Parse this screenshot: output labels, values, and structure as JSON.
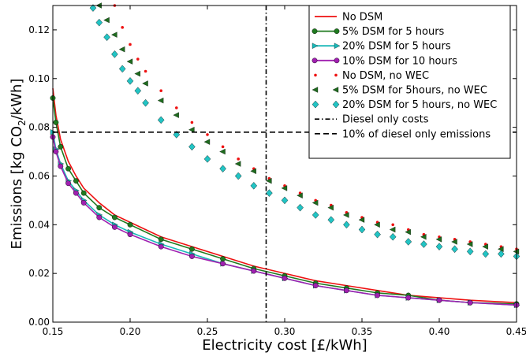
{
  "chart_data": {
    "type": "line",
    "xlabel": "Electricity cost [£/kWh]",
    "ylabel_main": "Emissions [kg CO",
    "ylabel_sub": "2",
    "ylabel_tail": "/kWh]",
    "xlim": [
      0.15,
      0.45
    ],
    "ylim": [
      0.0,
      0.13
    ],
    "xticks": [
      "0.15",
      "0.20",
      "0.25",
      "0.30",
      "0.35",
      "0.40",
      "0.45"
    ],
    "xtick_values": [
      0.15,
      0.2,
      0.25,
      0.3,
      0.35,
      0.4,
      0.45
    ],
    "yticks": [
      "0.00",
      "0.02",
      "0.04",
      "0.06",
      "0.08",
      "0.10",
      "0.12"
    ],
    "ytick_values": [
      0.0,
      0.02,
      0.04,
      0.06,
      0.08,
      0.1,
      0.12
    ],
    "grid": false,
    "legend_position": "top-right",
    "series": [
      {
        "name": "No DSM",
        "color": "#ee1111",
        "style": "line",
        "marker": "none",
        "x": [
          0.15,
          0.152,
          0.155,
          0.16,
          0.165,
          0.17,
          0.18,
          0.19,
          0.2,
          0.22,
          0.24,
          0.26,
          0.28,
          0.3,
          0.32,
          0.34,
          0.36,
          0.38,
          0.4,
          0.42,
          0.45
        ],
        "y": [
          0.096,
          0.085,
          0.075,
          0.066,
          0.06,
          0.055,
          0.049,
          0.044,
          0.041,
          0.035,
          0.031,
          0.027,
          0.023,
          0.02,
          0.017,
          0.015,
          0.013,
          0.011,
          0.01,
          0.009,
          0.008
        ]
      },
      {
        "name": "5% DSM for 5 hours",
        "color": "#1f7a1f",
        "style": "line",
        "marker": "circle",
        "x": [
          0.15,
          0.152,
          0.155,
          0.16,
          0.165,
          0.17,
          0.18,
          0.19,
          0.2,
          0.22,
          0.24,
          0.26,
          0.28,
          0.3,
          0.32,
          0.34,
          0.36,
          0.38,
          0.4,
          0.42,
          0.45
        ],
        "y": [
          0.092,
          0.082,
          0.072,
          0.063,
          0.058,
          0.053,
          0.047,
          0.043,
          0.04,
          0.034,
          0.03,
          0.026,
          0.022,
          0.019,
          0.016,
          0.014,
          0.012,
          0.011,
          0.009,
          0.008,
          0.0075
        ]
      },
      {
        "name": "20% DSM for 5 hours",
        "color": "#1ab8b8",
        "style": "line",
        "marker": "triangle-right",
        "x": [
          0.15,
          0.152,
          0.155,
          0.16,
          0.165,
          0.17,
          0.18,
          0.19,
          0.2,
          0.22,
          0.24,
          0.26,
          0.28,
          0.3,
          0.32,
          0.34,
          0.36,
          0.38,
          0.4,
          0.42,
          0.45
        ],
        "y": [
          0.078,
          0.071,
          0.065,
          0.058,
          0.054,
          0.05,
          0.044,
          0.04,
          0.037,
          0.032,
          0.028,
          0.024,
          0.021,
          0.018,
          0.015,
          0.013,
          0.011,
          0.01,
          0.009,
          0.008,
          0.007
        ]
      },
      {
        "name": "10% DSM for 10 hours",
        "color": "#a020b0",
        "style": "line",
        "marker": "circle",
        "x": [
          0.15,
          0.152,
          0.155,
          0.16,
          0.165,
          0.17,
          0.18,
          0.19,
          0.2,
          0.22,
          0.24,
          0.26,
          0.28,
          0.3,
          0.32,
          0.34,
          0.36,
          0.38,
          0.4,
          0.42,
          0.45
        ],
        "y": [
          0.076,
          0.07,
          0.064,
          0.057,
          0.053,
          0.049,
          0.043,
          0.039,
          0.036,
          0.031,
          0.027,
          0.024,
          0.021,
          0.018,
          0.015,
          0.013,
          0.011,
          0.01,
          0.009,
          0.008,
          0.007
        ]
      },
      {
        "name": "No DSM, no WEC",
        "color": "#ee1111",
        "style": "scatter",
        "marker": "dot",
        "x": [
          0.19,
          0.195,
          0.2,
          0.205,
          0.21,
          0.22,
          0.23,
          0.24,
          0.25,
          0.26,
          0.27,
          0.28,
          0.29,
          0.3,
          0.31,
          0.32,
          0.33,
          0.34,
          0.35,
          0.36,
          0.37,
          0.38,
          0.39,
          0.4,
          0.41,
          0.42,
          0.43,
          0.44,
          0.45
        ],
        "y": [
          0.13,
          0.121,
          0.114,
          0.108,
          0.103,
          0.095,
          0.088,
          0.082,
          0.077,
          0.072,
          0.067,
          0.063,
          0.059,
          0.056,
          0.053,
          0.05,
          0.048,
          0.045,
          0.043,
          0.041,
          0.04,
          0.038,
          0.036,
          0.035,
          0.034,
          0.033,
          0.032,
          0.031,
          0.03
        ]
      },
      {
        "name": "5% DSM for 5hours, no WEC",
        "color": "#1f6b1f",
        "style": "scatter",
        "marker": "triangle-left",
        "x": [
          0.18,
          0.185,
          0.19,
          0.195,
          0.2,
          0.205,
          0.21,
          0.22,
          0.23,
          0.24,
          0.25,
          0.26,
          0.27,
          0.28,
          0.29,
          0.3,
          0.31,
          0.32,
          0.33,
          0.34,
          0.35,
          0.36,
          0.37,
          0.38,
          0.39,
          0.4,
          0.41,
          0.42,
          0.43,
          0.44,
          0.45
        ],
        "y": [
          0.13,
          0.124,
          0.118,
          0.112,
          0.107,
          0.102,
          0.098,
          0.091,
          0.085,
          0.079,
          0.074,
          0.07,
          0.065,
          0.062,
          0.058,
          0.055,
          0.052,
          0.049,
          0.047,
          0.044,
          0.042,
          0.04,
          0.038,
          0.037,
          0.035,
          0.034,
          0.033,
          0.032,
          0.031,
          0.03,
          0.029
        ]
      },
      {
        "name": "20% DSM for 5 hours, no WEC",
        "color": "#22c4c4",
        "style": "scatter",
        "marker": "diamond",
        "x": [
          0.176,
          0.18,
          0.185,
          0.19,
          0.195,
          0.2,
          0.205,
          0.21,
          0.22,
          0.23,
          0.24,
          0.25,
          0.26,
          0.27,
          0.28,
          0.29,
          0.3,
          0.31,
          0.32,
          0.33,
          0.34,
          0.35,
          0.36,
          0.37,
          0.38,
          0.39,
          0.4,
          0.41,
          0.42,
          0.43,
          0.44,
          0.45
        ],
        "y": [
          0.129,
          0.123,
          0.117,
          0.11,
          0.104,
          0.099,
          0.095,
          0.09,
          0.083,
          0.077,
          0.072,
          0.067,
          0.063,
          0.06,
          0.056,
          0.053,
          0.05,
          0.047,
          0.044,
          0.042,
          0.04,
          0.038,
          0.036,
          0.035,
          0.033,
          0.032,
          0.031,
          0.03,
          0.029,
          0.028,
          0.028,
          0.027
        ]
      }
    ],
    "reference_lines": [
      {
        "name": "Diesel only costs",
        "orientation": "vertical",
        "value": 0.288,
        "style": "dashdot",
        "color": "#000000"
      },
      {
        "name": "10% of diesel only emissions",
        "orientation": "horizontal",
        "value": 0.078,
        "style": "dashed",
        "color": "#000000"
      }
    ]
  }
}
